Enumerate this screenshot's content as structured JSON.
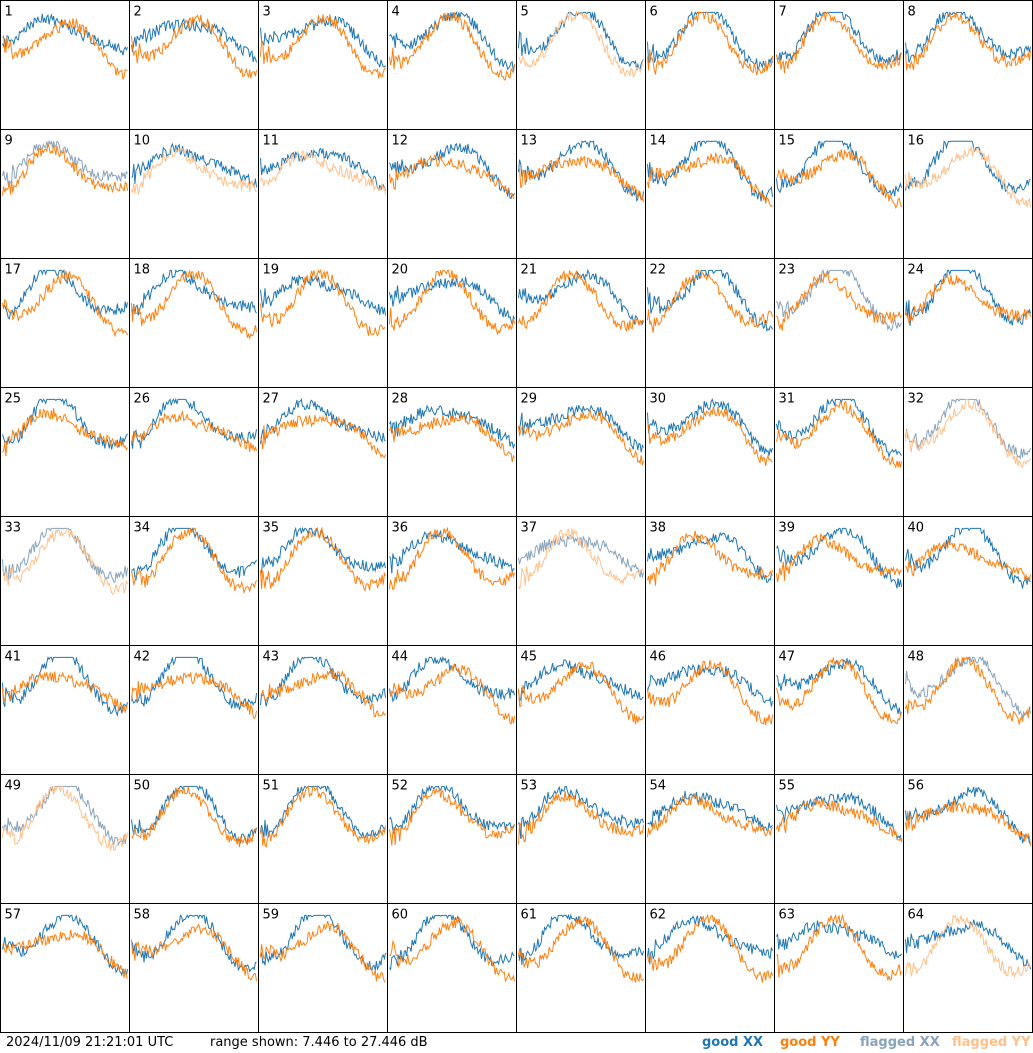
{
  "chart_data": {
    "type": "line",
    "panel_count": 64,
    "grid": {
      "cols": 8,
      "rows": 8
    },
    "ylim": [
      7.446,
      27.446
    ],
    "panels": [
      {
        "label": "1",
        "xx": "good",
        "yy": "good"
      },
      {
        "label": "2",
        "xx": "good",
        "yy": "good"
      },
      {
        "label": "3",
        "xx": "good",
        "yy": "good"
      },
      {
        "label": "4",
        "xx": "good",
        "yy": "good"
      },
      {
        "label": "5",
        "xx": "good",
        "yy": "flagged"
      },
      {
        "label": "6",
        "xx": "good",
        "yy": "good"
      },
      {
        "label": "7",
        "xx": "good",
        "yy": "good"
      },
      {
        "label": "8",
        "xx": "good",
        "yy": "good"
      },
      {
        "label": "9",
        "xx": "flagged",
        "yy": "good"
      },
      {
        "label": "10",
        "xx": "good",
        "yy": "flagged"
      },
      {
        "label": "11",
        "xx": "good",
        "yy": "flagged"
      },
      {
        "label": "12",
        "xx": "good",
        "yy": "good"
      },
      {
        "label": "13",
        "xx": "good",
        "yy": "good"
      },
      {
        "label": "14",
        "xx": "good",
        "yy": "good"
      },
      {
        "label": "15",
        "xx": "good",
        "yy": "good"
      },
      {
        "label": "16",
        "xx": "good",
        "yy": "flagged"
      },
      {
        "label": "17",
        "xx": "good",
        "yy": "good"
      },
      {
        "label": "18",
        "xx": "good",
        "yy": "good"
      },
      {
        "label": "19",
        "xx": "good",
        "yy": "good"
      },
      {
        "label": "20",
        "xx": "good",
        "yy": "good"
      },
      {
        "label": "21",
        "xx": "good",
        "yy": "good"
      },
      {
        "label": "22",
        "xx": "good",
        "yy": "good"
      },
      {
        "label": "23",
        "xx": "flagged",
        "yy": "good"
      },
      {
        "label": "24",
        "xx": "good",
        "yy": "good"
      },
      {
        "label": "25",
        "xx": "good",
        "yy": "good"
      },
      {
        "label": "26",
        "xx": "good",
        "yy": "good"
      },
      {
        "label": "27",
        "xx": "good",
        "yy": "good"
      },
      {
        "label": "28",
        "xx": "good",
        "yy": "good"
      },
      {
        "label": "29",
        "xx": "good",
        "yy": "good"
      },
      {
        "label": "30",
        "xx": "good",
        "yy": "good"
      },
      {
        "label": "31",
        "xx": "good",
        "yy": "good"
      },
      {
        "label": "32",
        "xx": "flagged",
        "yy": "flagged"
      },
      {
        "label": "33",
        "xx": "flagged",
        "yy": "flagged"
      },
      {
        "label": "34",
        "xx": "good",
        "yy": "good"
      },
      {
        "label": "35",
        "xx": "good",
        "yy": "good"
      },
      {
        "label": "36",
        "xx": "good",
        "yy": "good"
      },
      {
        "label": "37",
        "xx": "flagged",
        "yy": "flagged"
      },
      {
        "label": "38",
        "xx": "good",
        "yy": "good"
      },
      {
        "label": "39",
        "xx": "good",
        "yy": "good"
      },
      {
        "label": "40",
        "xx": "good",
        "yy": "good"
      },
      {
        "label": "41",
        "xx": "good",
        "yy": "good"
      },
      {
        "label": "42",
        "xx": "good",
        "yy": "good"
      },
      {
        "label": "43",
        "xx": "good",
        "yy": "good"
      },
      {
        "label": "44",
        "xx": "good",
        "yy": "good"
      },
      {
        "label": "45",
        "xx": "good",
        "yy": "good"
      },
      {
        "label": "46",
        "xx": "good",
        "yy": "good"
      },
      {
        "label": "47",
        "xx": "good",
        "yy": "good"
      },
      {
        "label": "48",
        "xx": "flagged",
        "yy": "good"
      },
      {
        "label": "49",
        "xx": "flagged",
        "yy": "flagged"
      },
      {
        "label": "50",
        "xx": "good",
        "yy": "good"
      },
      {
        "label": "51",
        "xx": "good",
        "yy": "good"
      },
      {
        "label": "52",
        "xx": "good",
        "yy": "good"
      },
      {
        "label": "53",
        "xx": "good",
        "yy": "good"
      },
      {
        "label": "54",
        "xx": "good",
        "yy": "good"
      },
      {
        "label": "55",
        "xx": "good",
        "yy": "good"
      },
      {
        "label": "56",
        "xx": "good",
        "yy": "good"
      },
      {
        "label": "57",
        "xx": "good",
        "yy": "good"
      },
      {
        "label": "58",
        "xx": "good",
        "yy": "good"
      },
      {
        "label": "59",
        "xx": "good",
        "yy": "good"
      },
      {
        "label": "60",
        "xx": "good",
        "yy": "good"
      },
      {
        "label": "61",
        "xx": "good",
        "yy": "good"
      },
      {
        "label": "62",
        "xx": "good",
        "yy": "good"
      },
      {
        "label": "63",
        "xx": "good",
        "yy": "good"
      },
      {
        "label": "64",
        "xx": "good",
        "yy": "flagged"
      }
    ],
    "legend": [
      {
        "label": "good XX",
        "color": "#1f77b4"
      },
      {
        "label": "good YY",
        "color": "#ff7f0e"
      },
      {
        "label": "flagged XX",
        "color": "#87a3bd"
      },
      {
        "label": "flagged YY",
        "color": "#ffc08a"
      }
    ]
  },
  "footer": {
    "timestamp": "2024/11/09 21:21:01 UTC",
    "range_text": "range shown: 7.446 to 27.446 dB"
  }
}
